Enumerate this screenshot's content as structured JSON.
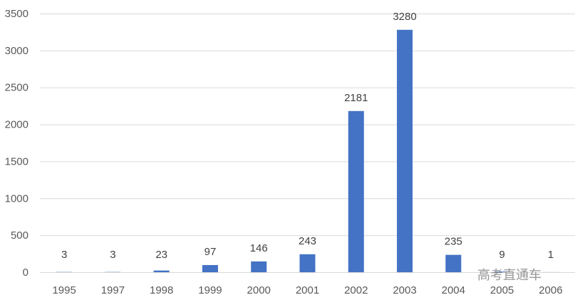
{
  "chart_data": {
    "type": "bar",
    "categories": [
      "1995",
      "1997",
      "1998",
      "1999",
      "2000",
      "2001",
      "2002",
      "2003",
      "2004",
      "2005",
      "2006"
    ],
    "values": [
      3,
      3,
      23,
      97,
      146,
      243,
      2181,
      3280,
      235,
      9,
      1
    ],
    "title": "",
    "xlabel": "",
    "ylabel": "",
    "ylim": [
      0,
      3500
    ],
    "yticks": [
      0,
      500,
      1000,
      1500,
      2000,
      2500,
      3000,
      3500
    ],
    "grid": true,
    "data_labels": true,
    "bar_color": "#4472c4"
  },
  "watermark": {
    "text": "高考直通车"
  }
}
